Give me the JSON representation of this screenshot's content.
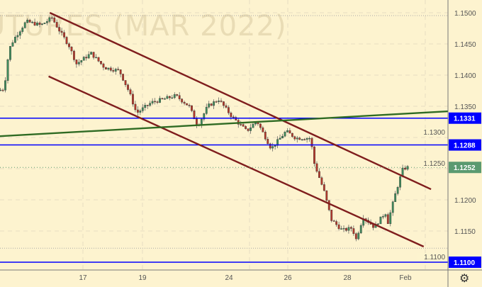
{
  "watermark": "UTURES (MAR 2022)",
  "settings_icon": "gear-icon",
  "colors": {
    "background": "#fdf3cf",
    "up_candle": "#3e8c5c",
    "down_candle": "#b5372a",
    "channel_line": "#7f1d1d",
    "trend_line": "#2f6b23",
    "level_line": "#0000ff",
    "last_price_badge": "#5a9a70"
  },
  "chart_data": {
    "type": "candlestick",
    "title": "",
    "ylim": [
      1.1075,
      1.152
    ],
    "grid": true,
    "x_ticks": [
      "17",
      "19",
      "24",
      "26",
      "28",
      "Feb"
    ],
    "y_ticks": [
      "1.1500",
      "1.1450",
      "1.1400",
      "1.1350",
      "1.1300",
      "1.1250",
      "1.1200",
      "1.1150",
      "1.1100"
    ],
    "price_path": [
      [
        "01-12 04",
        1.1375
      ],
      [
        "01-12 09",
        1.1378
      ],
      [
        "01-12 13",
        1.1441
      ],
      [
        "01-12 17",
        1.1458
      ],
      [
        "01-13 03",
        1.1486
      ],
      [
        "01-13 15",
        1.148
      ],
      [
        "01-14 00",
        1.1492
      ],
      [
        "01-14 05",
        1.1475
      ],
      [
        "01-14 14",
        1.1447
      ],
      [
        "01-14 20",
        1.1418
      ],
      [
        "01-17 08",
        1.1435
      ],
      [
        "01-17 19",
        1.1412
      ],
      [
        "01-18 07",
        1.1407
      ],
      [
        "01-18 15",
        1.1373
      ],
      [
        "01-18 21",
        1.1339
      ],
      [
        "01-19 09",
        1.1356
      ],
      [
        "01-20 05",
        1.1367
      ],
      [
        "01-20 16",
        1.135
      ],
      [
        "01-20 23",
        1.1318
      ],
      [
        "01-21 07",
        1.135
      ],
      [
        "01-21 16",
        1.1361
      ],
      [
        "01-24 03",
        1.1333
      ],
      [
        "01-24 15",
        1.131
      ],
      [
        "01-24 23",
        1.1327
      ],
      [
        "01-25 11",
        1.1282
      ],
      [
        "01-25 23",
        1.131
      ],
      [
        "01-26 07",
        1.1299
      ],
      [
        "01-26 19",
        1.1299
      ],
      [
        "01-26 22",
        1.1259
      ],
      [
        "01-27 06",
        1.1214
      ],
      [
        "01-27 12",
        1.1168
      ],
      [
        "01-27 21",
        1.1151
      ],
      [
        "01-28 05",
        1.1155
      ],
      [
        "01-28 08",
        1.1136
      ],
      [
        "01-28 14",
        1.1173
      ],
      [
        "01-28 23",
        1.1156
      ],
      [
        "01-31 08",
        1.118
      ],
      [
        "01-31 10",
        1.1163
      ],
      [
        "01-31 16",
        1.1208
      ],
      [
        "01-31 22",
        1.1248
      ],
      [
        "02-01 01",
        1.1252
      ]
    ],
    "lines": [
      {
        "kind": "channel-upper",
        "from": [
          "01-13 21",
          1.15
        ],
        "to": [
          "02-01 20",
          1.1217
        ]
      },
      {
        "kind": "channel-lower",
        "from": [
          "01-13 20",
          1.1398
        ],
        "to": [
          "02-01 14",
          1.1125
        ]
      },
      {
        "kind": "trend",
        "from": [
          "01-12 04",
          1.1302
        ],
        "to": [
          "02-02 10",
          1.1342
        ]
      }
    ],
    "levels": [
      {
        "price": 1.1331,
        "label": "1.1331"
      },
      {
        "price": 1.1288,
        "label": "1.1288"
      },
      {
        "price": 1.11,
        "label": "1.1100"
      }
    ],
    "dotted_levels": [
      1.15,
      1.1127
    ],
    "last_price": {
      "price": 1.1252,
      "label": "1.1252"
    }
  }
}
